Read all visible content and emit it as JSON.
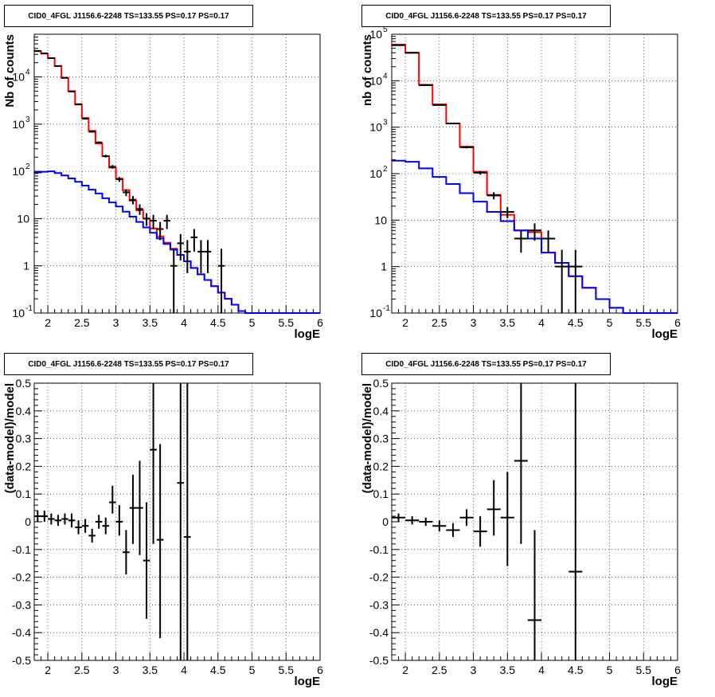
{
  "panel_title": "CID0_4FGL J1156.6-2248 TS=133.55 PS=0.17 PS=0.17",
  "colors": {
    "data": "#000000",
    "total_model": "#ff0000",
    "component": "#0000ff"
  },
  "chart_data": [
    {
      "type": "line",
      "title": "CID0_4FGL J1156.6-2248 TS=133.55 PS=0.17 PS=0.17",
      "xlabel": "logE",
      "ylabel": "Nb of counts",
      "xlim": [
        1.8,
        6.0
      ],
      "ylim": [
        0.1,
        80000
      ],
      "yscale": "log",
      "grid": true,
      "xticks": [
        "2",
        "2.5",
        "3",
        "3.5",
        "4",
        "4.5",
        "5",
        "5.5",
        "6"
      ],
      "yticks": [
        {
          "value": 0.1,
          "mantissa": "10",
          "exp": "-1"
        },
        {
          "value": 1,
          "mantissa": "1",
          "exp": ""
        },
        {
          "value": 10,
          "mantissa": "10",
          "exp": ""
        },
        {
          "value": 100,
          "mantissa": "10",
          "exp": "2"
        },
        {
          "value": 1000,
          "mantissa": "10",
          "exp": "3"
        },
        {
          "value": 10000,
          "mantissa": "10",
          "exp": "4"
        }
      ],
      "bin_edges": [
        1.8,
        1.9,
        2.0,
        2.1,
        2.2,
        2.3,
        2.4,
        2.5,
        2.6,
        2.7,
        2.8,
        2.9,
        3.0,
        3.1,
        3.2,
        3.3,
        3.4,
        3.5,
        3.6,
        3.7,
        3.8,
        3.9,
        4.0,
        4.1,
        4.2,
        4.3,
        4.4,
        4.5,
        4.6,
        4.7,
        4.8,
        4.9,
        5.0,
        5.1,
        5.2,
        5.3,
        5.4,
        5.5,
        5.6,
        5.7,
        5.8,
        5.9,
        6.0
      ],
      "series": [
        {
          "name": "total model",
          "color": "#ff0000",
          "step": true,
          "values": [
            35000,
            31000,
            25000,
            17000,
            9500,
            5000,
            2600,
            1350,
            720,
            390,
            210,
            120,
            70,
            40,
            24,
            15,
            10,
            6.2,
            4.2,
            3.1,
            2.3,
            1.7,
            1.25,
            0.9,
            0.66,
            0.5,
            0.37,
            0.27,
            0.2,
            0.15,
            0.11,
            0.1,
            0.1,
            0.1,
            0.1,
            0.1,
            0.1,
            0.1,
            0.1,
            0.1,
            0.1,
            0.1
          ]
        },
        {
          "name": "component",
          "color": "#0000ff",
          "step": true,
          "values": [
            95,
            98,
            100,
            92,
            82,
            71,
            60,
            50,
            41,
            34,
            27,
            22,
            18,
            14,
            11,
            8.5,
            6.5,
            5,
            3.8,
            2.9,
            2.2,
            1.7,
            1.25,
            0.9,
            0.66,
            0.5,
            0.37,
            0.27,
            0.2,
            0.15,
            0.11,
            0.1,
            0.1,
            0.1,
            0.1,
            0.1,
            0.1,
            0.1,
            0.1,
            0.1,
            0.1,
            0.1
          ]
        },
        {
          "name": "data",
          "color": "#000000",
          "type": "errorbar",
          "xerr": 0.05,
          "x": [
            1.85,
            1.95,
            2.05,
            2.15,
            2.25,
            2.35,
            2.45,
            2.55,
            2.65,
            2.75,
            2.85,
            2.95,
            3.05,
            3.15,
            3.25,
            3.35,
            3.45,
            3.55,
            3.65,
            3.75,
            3.85,
            3.95,
            4.05,
            4.15,
            4.25,
            4.35,
            4.55
          ],
          "y": [
            35500,
            31500,
            25000,
            17000,
            9600,
            4900,
            2650,
            1300,
            690,
            410,
            210,
            125,
            68,
            36,
            25,
            16,
            10,
            9,
            6,
            9,
            1,
            3,
            2,
            4,
            2,
            2,
            1
          ],
          "ylo": [
            35300,
            31300,
            24800,
            16850,
            9500,
            4830,
            2600,
            1265,
            664,
            390,
            196,
            114,
            60,
            30,
            20,
            12,
            7,
            6,
            3.5,
            6,
            0.1,
            1.3,
            0.7,
            2,
            0.7,
            0.7,
            0.1
          ],
          "yhi": [
            35700,
            31700,
            25200,
            17150,
            9700,
            4970,
            2700,
            1335,
            716,
            430,
            224,
            136,
            76,
            42,
            30,
            20,
            13,
            12,
            8.5,
            12,
            2.3,
            4.7,
            3.5,
            6,
            3.5,
            3.5,
            2.3
          ]
        }
      ]
    },
    {
      "type": "line",
      "title": "CID0_4FGL J1156.6-2248 TS=133.55 PS=0.17 PS=0.17",
      "xlabel": "logE",
      "ylabel": "nb of counts",
      "xlim": [
        1.8,
        6.0
      ],
      "ylim": [
        0.1,
        100000
      ],
      "yscale": "log",
      "grid": true,
      "xticks": [
        "2",
        "2.5",
        "3",
        "3.5",
        "4",
        "4.5",
        "5",
        "5.5",
        "6"
      ],
      "yticks": [
        {
          "value": 0.1,
          "mantissa": "10",
          "exp": "-1"
        },
        {
          "value": 1,
          "mantissa": "1",
          "exp": ""
        },
        {
          "value": 10,
          "mantissa": "10",
          "exp": ""
        },
        {
          "value": 100,
          "mantissa": "10",
          "exp": "2"
        },
        {
          "value": 1000,
          "mantissa": "10",
          "exp": "3"
        },
        {
          "value": 10000,
          "mantissa": "10",
          "exp": "4"
        },
        {
          "value": 100000,
          "mantissa": "10",
          "exp": "5"
        }
      ],
      "bin_edges": [
        1.8,
        2.0,
        2.2,
        2.4,
        2.6,
        2.8,
        3.0,
        3.2,
        3.4,
        3.6,
        3.8,
        4.0,
        4.2,
        4.4,
        4.6,
        4.8,
        5.0,
        5.2,
        5.4,
        5.6,
        5.8,
        6.0
      ],
      "series": [
        {
          "name": "total model",
          "color": "#ff0000",
          "step": true,
          "values": [
            60000,
            40000,
            8200,
            3100,
            1200,
            380,
            110,
            35,
            13,
            6,
            5.5,
            2,
            1.2,
            0.62,
            0.35,
            0.2,
            0.13,
            0.1,
            0.1,
            0.1,
            0.1
          ]
        },
        {
          "name": "component",
          "color": "#0000ff",
          "step": true,
          "values": [
            190,
            180,
            130,
            85,
            60,
            38,
            25,
            15,
            9.5,
            6,
            4,
            2,
            1.2,
            0.62,
            0.35,
            0.2,
            0.13,
            0.1,
            0.1,
            0.1,
            0.1
          ]
        },
        {
          "name": "data",
          "color": "#000000",
          "type": "errorbar",
          "xerr": 0.1,
          "x": [
            1.9,
            2.1,
            2.3,
            2.5,
            2.7,
            2.9,
            3.1,
            3.3,
            3.5,
            3.7,
            3.9,
            4.1,
            4.3,
            4.5
          ],
          "y": [
            58000,
            40000,
            8000,
            3000,
            1200,
            370,
            105,
            34,
            15,
            4,
            6,
            4,
            1,
            1
          ],
          "ylo": [
            57760,
            39800,
            7910,
            2945,
            1165,
            350,
            95,
            28,
            11,
            2,
            3.6,
            2,
            0.1,
            0.1
          ],
          "yhi": [
            58240,
            40200,
            8090,
            3055,
            1235,
            390,
            115,
            40,
            19,
            6,
            8.5,
            6,
            2.3,
            2.3
          ]
        }
      ]
    },
    {
      "type": "scatter",
      "title": "CID0_4FGL J1156.6-2248 TS=133.55 PS=0.17 PS=0.17",
      "xlabel": "logE",
      "ylabel": "(data-model)/model",
      "xlim": [
        1.8,
        6.0
      ],
      "ylim": [
        -0.5,
        0.5
      ],
      "grid": true,
      "xticks": [
        "2",
        "2.5",
        "3",
        "3.5",
        "4",
        "4.5",
        "5",
        "5.5",
        "6"
      ],
      "yticks": [
        "-0.5",
        "-0.4",
        "-0.3",
        "-0.2",
        "-0.1",
        "0",
        "0.1",
        "0.2",
        "0.3",
        "0.4",
        "0.5"
      ],
      "series": [
        {
          "name": "residuals",
          "color": "#000000",
          "type": "errorbar",
          "xerr": 0.05,
          "x": [
            1.85,
            1.95,
            2.05,
            2.15,
            2.25,
            2.35,
            2.45,
            2.55,
            2.65,
            2.75,
            2.85,
            2.95,
            3.05,
            3.15,
            3.25,
            3.35,
            3.45,
            3.55,
            3.65,
            3.95,
            4.05
          ],
          "y": [
            0.02,
            0.02,
            0.01,
            0.005,
            0.01,
            0.005,
            -0.02,
            -0.015,
            -0.05,
            0.0,
            -0.015,
            0.07,
            0.0,
            -0.11,
            0.05,
            0.05,
            -0.14,
            0.26,
            -0.065,
            0.14,
            -0.055
          ],
          "ylo": [
            0.0,
            0.0,
            -0.01,
            -0.015,
            -0.01,
            -0.02,
            -0.045,
            -0.04,
            -0.075,
            -0.025,
            -0.045,
            0.03,
            -0.05,
            -0.19,
            -0.08,
            -0.12,
            -0.35,
            -0.08,
            -0.42,
            -0.6,
            -0.6
          ],
          "yhi": [
            0.04,
            0.04,
            0.03,
            0.025,
            0.03,
            0.03,
            0.005,
            0.01,
            -0.025,
            0.025,
            0.015,
            0.13,
            0.06,
            -0.03,
            0.17,
            0.22,
            0.07,
            0.6,
            0.28,
            0.6,
            0.6
          ]
        }
      ]
    },
    {
      "type": "scatter",
      "title": "CID0_4FGL J1156.6-2248 TS=133.55 PS=0.17 PS=0.17",
      "xlabel": "logE",
      "ylabel": "(data-model)/model",
      "xlim": [
        1.8,
        6.0
      ],
      "ylim": [
        -0.5,
        0.5
      ],
      "grid": true,
      "xticks": [
        "2",
        "2.5",
        "3",
        "3.5",
        "4",
        "4.5",
        "5",
        "5.5",
        "6"
      ],
      "yticks": [
        "-0.5",
        "-0.4",
        "-0.3",
        "-0.2",
        "-0.1",
        "0",
        "0.1",
        "0.2",
        "0.3",
        "0.4",
        "0.5"
      ],
      "series": [
        {
          "name": "residuals",
          "color": "#000000",
          "type": "errorbar",
          "xerr": 0.1,
          "x": [
            1.9,
            2.1,
            2.3,
            2.5,
            2.7,
            2.9,
            3.1,
            3.3,
            3.5,
            3.7,
            3.9,
            4.5
          ],
          "y": [
            0.015,
            0.005,
            0.0,
            -0.015,
            -0.03,
            0.015,
            -0.035,
            0.045,
            0.015,
            0.22,
            -0.355,
            -0.18
          ],
          "ylo": [
            0.0,
            -0.01,
            -0.015,
            -0.035,
            -0.055,
            -0.015,
            -0.09,
            -0.05,
            -0.16,
            -0.08,
            -0.6,
            -0.6
          ],
          "yhi": [
            0.03,
            0.02,
            0.015,
            0.005,
            -0.005,
            0.045,
            0.02,
            0.15,
            0.18,
            0.6,
            -0.03,
            0.6
          ]
        }
      ]
    }
  ]
}
